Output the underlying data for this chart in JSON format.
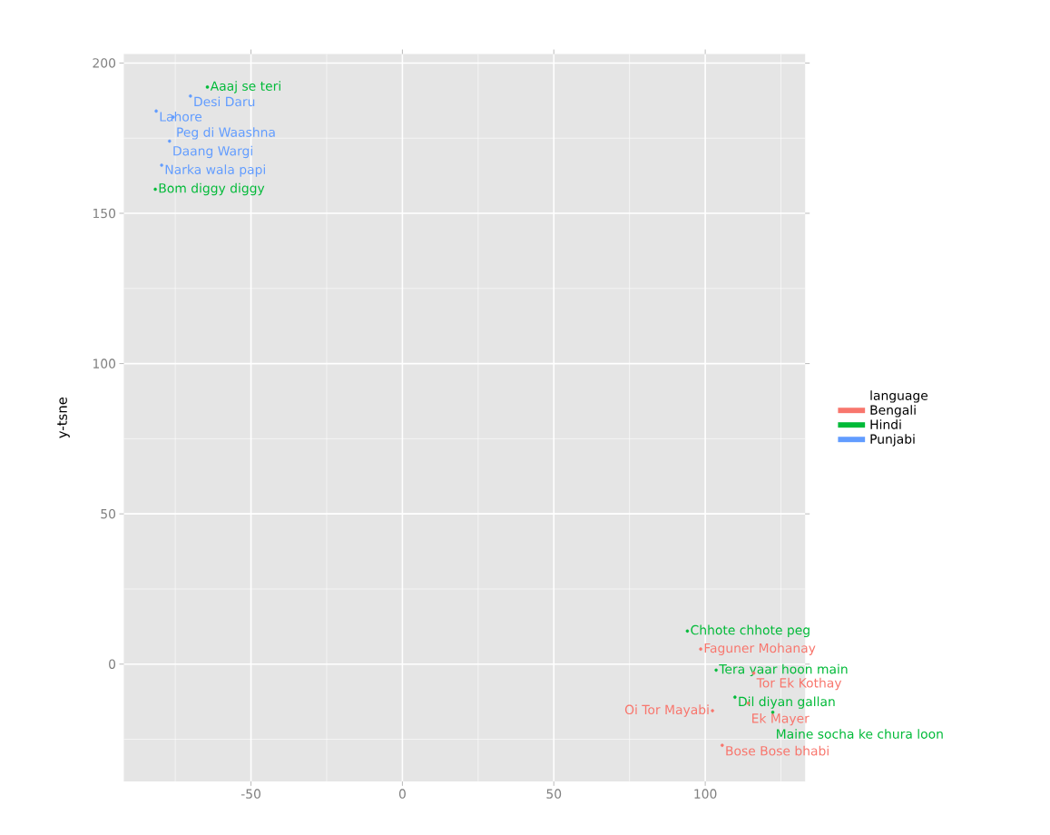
{
  "chart_data": {
    "type": "scatter",
    "ylabel": "y-tsne",
    "legend_title": "language",
    "legend": "right",
    "grid": true,
    "marker": "circle",
    "xlim": [
      -92,
      133
    ],
    "ylim": [
      -39,
      203
    ],
    "xticks": [
      -50,
      0,
      50,
      100
    ],
    "yticks": [
      0,
      50,
      100,
      150,
      200
    ],
    "series": [
      {
        "name": "Bengali",
        "color": "#f8766d",
        "x": [
          98.5,
          116.0,
          102.4,
          114.2,
          105.6
        ],
        "values": [
          5,
          -3,
          -15.5,
          -13,
          -27
        ],
        "value_labels": [
          "Faguner Mohanay",
          "Tor Ek Kothay",
          "Oi Tor Mayabi",
          "Ek Mayer",
          "Bose Bose bhabi"
        ]
      },
      {
        "name": "Hindi",
        "color": "#00ba38",
        "x": [
          -64.4,
          -81.6,
          94.1,
          103.6,
          109.8,
          122.3
        ],
        "values": [
          192,
          158,
          11,
          -2,
          -11,
          -16
        ],
        "value_labels": [
          "Aaaj se teri",
          "Bom diggy diggy",
          "Chhote chhote peg",
          "Tera yaar hoon main",
          "Dil diyan gallan",
          "Maine socha ke chura loon"
        ]
      },
      {
        "name": "Punjabi",
        "color": "#619cff",
        "x": [
          -70.0,
          -81.3,
          -75.7,
          -76.9,
          -79.5
        ],
        "values": [
          189,
          184,
          182,
          174,
          166
        ],
        "value_labels": [
          "Desi Daru",
          "Lahore",
          "Peg di Waashna",
          "Daang Wargi",
          "Narka wala papi"
        ]
      }
    ]
  }
}
